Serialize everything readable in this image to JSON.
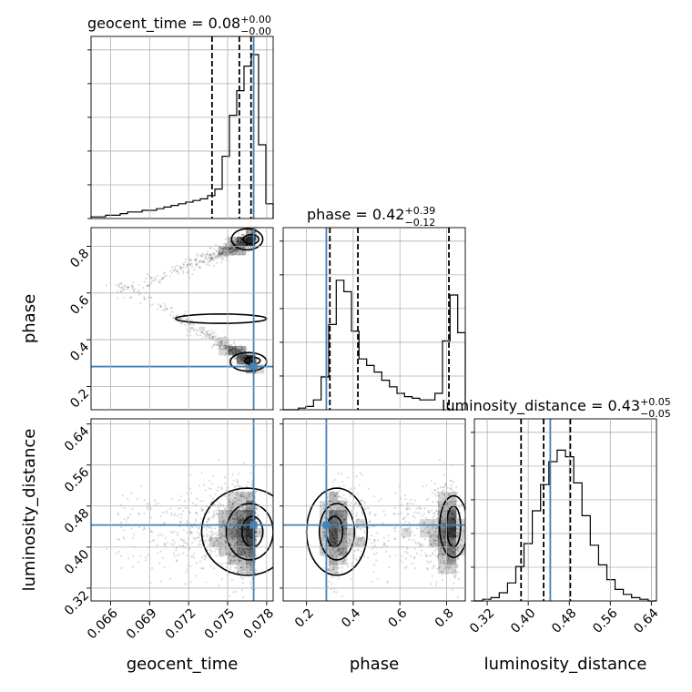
{
  "chart_data": {
    "type": "corner",
    "parameters": [
      {
        "name": "geocent_time",
        "title_lhs": "geocent_time = 0.08",
        "title_sup": "+0.00",
        "title_sub": "−0.00",
        "range": [
          0.0645,
          0.0785
        ],
        "ticks": [
          0.066,
          0.069,
          0.072,
          0.075,
          0.078
        ],
        "tick_labels": [
          "0.066",
          "0.069",
          "0.072",
          "0.075",
          "0.078"
        ],
        "quantiles": [
          0.0738,
          0.0759,
          0.0768
        ],
        "injection": 0.077,
        "hist": [
          0.01,
          0.01,
          0.02,
          0.02,
          0.03,
          0.04,
          0.04,
          0.05,
          0.05,
          0.06,
          0.07,
          0.08,
          0.09,
          0.1,
          0.11,
          0.12,
          0.14,
          0.18,
          0.38,
          0.63,
          0.78,
          0.93,
          1.0,
          0.45,
          0.09
        ]
      },
      {
        "name": "phase",
        "title_lhs": "phase = 0.42",
        "title_sup": "+0.39",
        "title_sub": "−0.12",
        "range": [
          0.1,
          0.88
        ],
        "ticks": [
          0.2,
          0.4,
          0.6,
          0.8
        ],
        "tick_labels": [
          "0.2",
          "0.4",
          "0.6",
          "0.8"
        ],
        "quantiles": [
          0.3,
          0.42,
          0.81
        ],
        "injection": 0.285,
        "hist": [
          0.0,
          0.0,
          0.01,
          0.02,
          0.06,
          0.2,
          0.52,
          0.79,
          0.72,
          0.48,
          0.31,
          0.27,
          0.23,
          0.18,
          0.14,
          0.1,
          0.08,
          0.07,
          0.06,
          0.06,
          0.1,
          0.42,
          0.7,
          0.47
        ]
      },
      {
        "name": "luminosity_distance",
        "title_lhs": "luminosity_distance = 0.43",
        "title_sup": "+0.05",
        "title_sub": "−0.05",
        "range": [
          0.295,
          0.65
        ],
        "ticks": [
          0.32,
          0.4,
          0.48,
          0.56,
          0.64
        ],
        "tick_labels": [
          "0.32",
          "0.40",
          "0.48",
          "0.56",
          "0.64"
        ],
        "quantiles": [
          0.386,
          0.43,
          0.482
        ],
        "injection": 0.443,
        "hist": [
          0.0,
          0.01,
          0.02,
          0.05,
          0.11,
          0.21,
          0.35,
          0.55,
          0.71,
          0.85,
          0.92,
          0.88,
          0.72,
          0.52,
          0.34,
          0.22,
          0.13,
          0.07,
          0.04,
          0.02,
          0.01,
          0.0
        ]
      }
    ],
    "injection_color": "#4682b4",
    "grid": true
  }
}
